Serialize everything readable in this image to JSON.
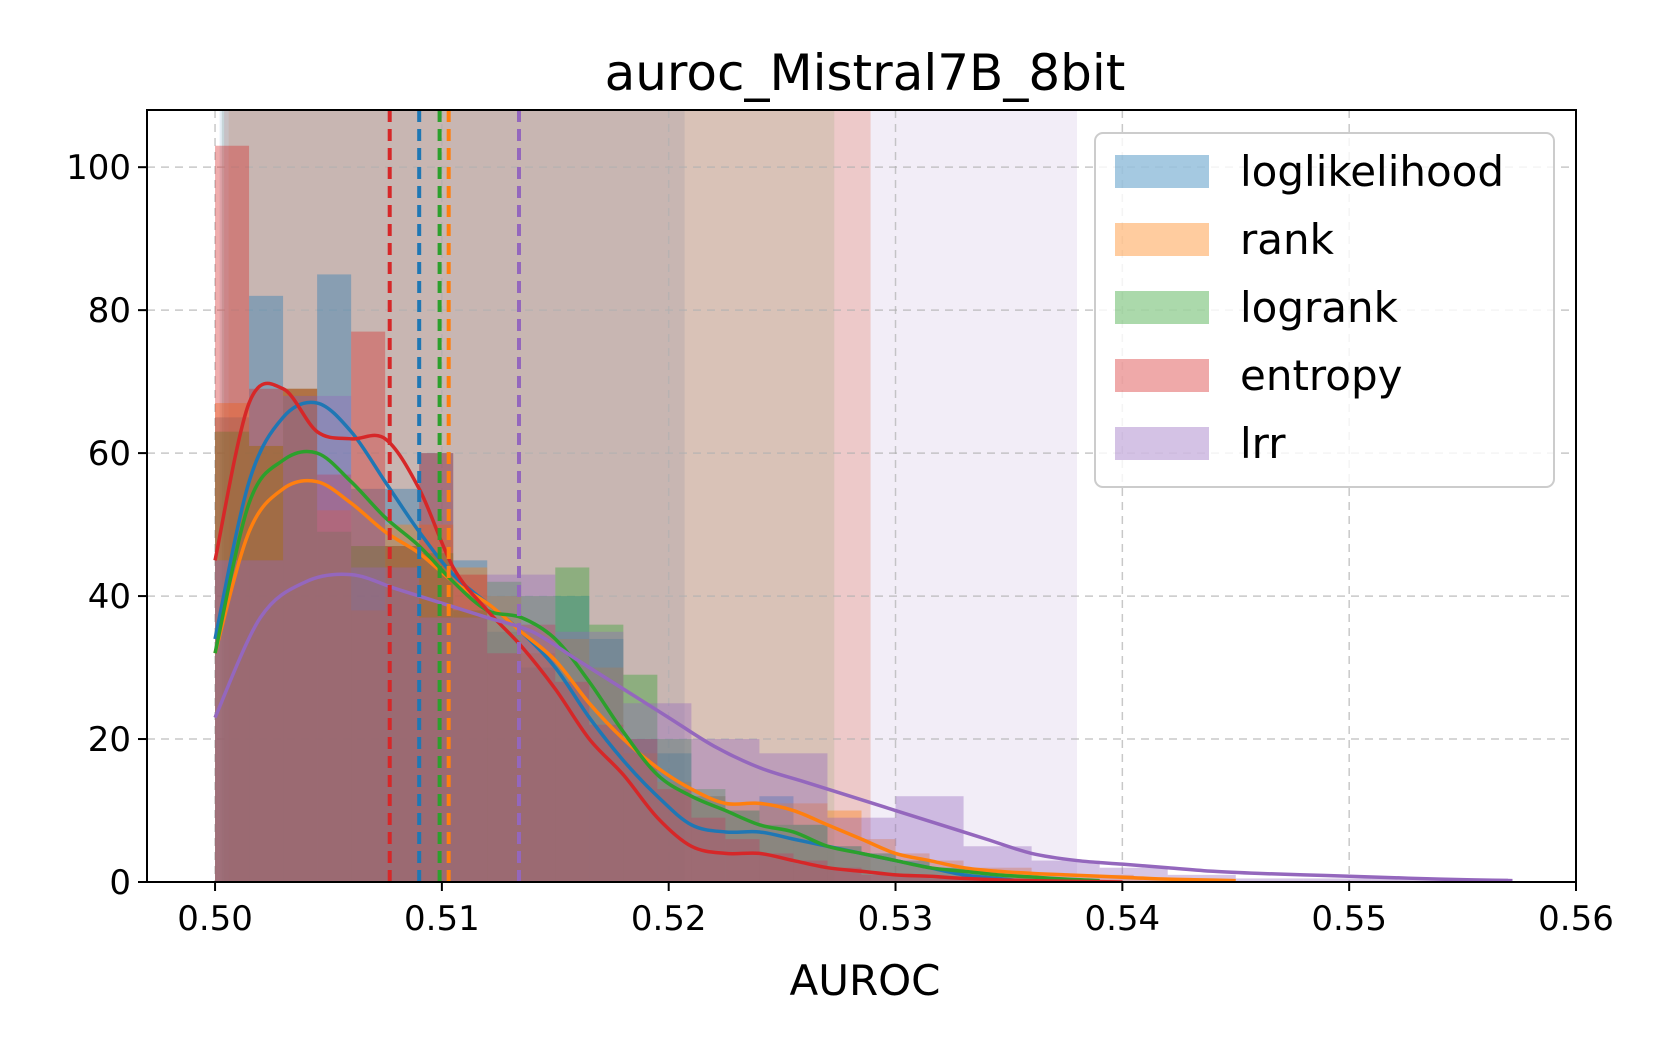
{
  "chart_data": {
    "type": "histogram",
    "title": "auroc_Mistral7B_8bit",
    "xlabel": "AUROC",
    "ylabel": "",
    "xlim": [
      0.497,
      0.56
    ],
    "ylim": [
      0,
      108
    ],
    "xticks": [
      "0.50",
      "0.51",
      "0.52",
      "0.53",
      "0.54",
      "0.55",
      "0.56"
    ],
    "xtick_values": [
      0.5,
      0.51,
      0.52,
      0.53,
      0.54,
      0.55,
      0.56
    ],
    "yticks": [
      "0",
      "20",
      "40",
      "60",
      "80",
      "100"
    ],
    "ytick_values": [
      0,
      20,
      40,
      60,
      80,
      100
    ],
    "grid": true,
    "legend_position": "top-right",
    "series": [
      {
        "name": "loglikelihood",
        "color": "#1f77b4",
        "mean": 0.509,
        "band": [
          0.5002,
          0.5207
        ],
        "hist_bins": [
          0.5,
          0.5015,
          0.503,
          0.5045,
          0.506,
          0.5075,
          0.509,
          0.5105,
          0.512,
          0.5135,
          0.515,
          0.5165,
          0.518,
          0.5195,
          0.521,
          0.5225,
          0.524,
          0.5255,
          0.527,
          0.5285,
          0.53,
          0.5315,
          0.533,
          0.5345,
          0.536
        ],
        "hist_counts": [
          65,
          82,
          68,
          85,
          55,
          55,
          60,
          45,
          35,
          30,
          40,
          34,
          20,
          18,
          12,
          10,
          12,
          8,
          5,
          4,
          3,
          2,
          1,
          0
        ],
        "kde_x": [
          0.5,
          0.5015,
          0.503,
          0.5045,
          0.506,
          0.5075,
          0.509,
          0.5105,
          0.512,
          0.5135,
          0.515,
          0.5165,
          0.518,
          0.5195,
          0.521,
          0.5225,
          0.524,
          0.5255,
          0.527,
          0.5285,
          0.53,
          0.5315,
          0.533,
          0.5345,
          0.536
        ],
        "kde_y": [
          34,
          56,
          65,
          67,
          63,
          56,
          49,
          43,
          39,
          35,
          30,
          23,
          17,
          12,
          8,
          7,
          7,
          6,
          5,
          4,
          3,
          2,
          1,
          0.5,
          0
        ]
      },
      {
        "name": "rank",
        "color": "#ff7f0e",
        "mean": 0.5103,
        "band": [
          0.5006,
          0.5289
        ],
        "hist_bins": [
          0.5,
          0.5015,
          0.503,
          0.5045,
          0.506,
          0.5075,
          0.509,
          0.5105,
          0.512,
          0.5135,
          0.515,
          0.5165,
          0.518,
          0.5195,
          0.521,
          0.5225,
          0.524,
          0.5255,
          0.527,
          0.5285,
          0.53,
          0.5315,
          0.533,
          0.5345,
          0.536,
          0.5375,
          0.539,
          0.5405,
          0.542,
          0.5435,
          0.545
        ],
        "hist_counts": [
          67,
          61,
          69,
          52,
          38,
          50,
          50,
          44,
          40,
          32,
          34,
          30,
          18,
          14,
          12,
          11,
          11,
          11,
          10,
          6,
          4,
          3,
          2,
          2,
          1,
          1,
          1,
          0.5,
          0.5,
          0
        ],
        "kde_x": [
          0.5,
          0.5015,
          0.503,
          0.5045,
          0.506,
          0.5075,
          0.509,
          0.5105,
          0.512,
          0.5135,
          0.515,
          0.5165,
          0.518,
          0.5195,
          0.521,
          0.5225,
          0.524,
          0.5255,
          0.527,
          0.5285,
          0.53,
          0.5315,
          0.533,
          0.5345,
          0.536,
          0.5375,
          0.539,
          0.5405,
          0.542,
          0.5435,
          0.545
        ],
        "kde_y": [
          32,
          49,
          55,
          56,
          53,
          49,
          46,
          42,
          39,
          35,
          31,
          25,
          20,
          16,
          13,
          11,
          11,
          10,
          8,
          6,
          4,
          3,
          2,
          1.5,
          1.2,
          1,
          0.8,
          0.6,
          0.4,
          0.3,
          0.2
        ]
      },
      {
        "name": "logrank",
        "color": "#2ca02c",
        "mean": 0.5099,
        "band": [
          0.5003,
          0.5273
        ],
        "hist_bins": [
          0.5,
          0.5015,
          0.503,
          0.5045,
          0.506,
          0.5075,
          0.509,
          0.5105,
          0.512,
          0.5135,
          0.515,
          0.5165,
          0.518,
          0.5195,
          0.521,
          0.5225,
          0.524,
          0.5255,
          0.527,
          0.5285,
          0.53,
          0.5315,
          0.533,
          0.5345,
          0.536,
          0.5375,
          0.539
        ],
        "hist_counts": [
          63,
          61,
          69,
          49,
          47,
          47,
          46,
          38,
          42,
          40,
          44,
          36,
          29,
          20,
          13,
          10,
          8,
          8,
          5,
          4,
          3,
          2,
          1.5,
          1,
          0.5,
          0
        ],
        "kde_x": [
          0.5,
          0.5015,
          0.503,
          0.5045,
          0.506,
          0.5075,
          0.509,
          0.5105,
          0.512,
          0.5135,
          0.515,
          0.5165,
          0.518,
          0.5195,
          0.521,
          0.5225,
          0.524,
          0.5255,
          0.527,
          0.5285,
          0.53,
          0.5315,
          0.533,
          0.5345,
          0.536,
          0.5375,
          0.539
        ],
        "kde_y": [
          32,
          53,
          59,
          60,
          56,
          51,
          47,
          42,
          38,
          37,
          34,
          28,
          21,
          15,
          12,
          10,
          8,
          7,
          5,
          4,
          3,
          2,
          1.5,
          1,
          0.7,
          0.4,
          0.2
        ]
      },
      {
        "name": "entropy",
        "color": "#d62728",
        "mean": 0.5077,
        "band": [
          0.5004,
          0.5289
        ],
        "hist_bins": [
          0.5,
          0.5015,
          0.503,
          0.5045,
          0.506,
          0.5075,
          0.509,
          0.5105,
          0.512,
          0.5135,
          0.515,
          0.5165,
          0.518,
          0.5195,
          0.521,
          0.5225,
          0.524,
          0.5255,
          0.527,
          0.5285,
          0.53,
          0.5315,
          0.533,
          0.5345,
          0.536
        ],
        "hist_counts": [
          103,
          69,
          69,
          57,
          77,
          47,
          60,
          43,
          32,
          36,
          28,
          22,
          20,
          13,
          9,
          6,
          4,
          3,
          2,
          1,
          1,
          0.5,
          0.5,
          0
        ],
        "kde_x": [
          0.5,
          0.5015,
          0.503,
          0.5045,
          0.506,
          0.5075,
          0.509,
          0.5105,
          0.512,
          0.5135,
          0.515,
          0.5165,
          0.518,
          0.5195,
          0.521,
          0.5225,
          0.524,
          0.5255,
          0.527,
          0.5285,
          0.53,
          0.5315,
          0.533,
          0.5345,
          0.536,
          0.5375,
          0.539,
          0.54
        ],
        "kde_y": [
          45,
          67,
          69,
          63,
          62,
          62,
          55,
          44,
          38,
          33,
          27,
          20,
          15,
          9,
          5,
          4,
          4,
          3,
          2,
          1.5,
          1,
          0.8,
          0.5,
          0.3,
          0.2,
          0.1,
          0.05,
          0
        ]
      },
      {
        "name": "lrr",
        "color": "#9467bd",
        "mean": 0.5134,
        "band": [
          0.5003,
          0.538
        ],
        "hist_bins": [
          0.5,
          0.503,
          0.506,
          0.509,
          0.512,
          0.515,
          0.518,
          0.521,
          0.524,
          0.527,
          0.53,
          0.533,
          0.536,
          0.539,
          0.542,
          0.545,
          0.548,
          0.551,
          0.554,
          0.557
        ],
        "hist_counts": [
          45,
          68,
          44,
          37,
          43,
          35,
          25,
          20,
          18,
          9,
          12,
          5,
          3,
          2,
          1,
          0.5,
          0.5,
          0.5,
          0.5
        ],
        "kde_x": [
          0.5,
          0.502,
          0.504,
          0.506,
          0.508,
          0.51,
          0.512,
          0.514,
          0.516,
          0.518,
          0.52,
          0.522,
          0.524,
          0.526,
          0.528,
          0.53,
          0.532,
          0.534,
          0.536,
          0.538,
          0.54,
          0.542,
          0.544,
          0.546,
          0.548,
          0.55,
          0.552,
          0.554,
          0.5572
        ],
        "kde_y": [
          23,
          37,
          42,
          43,
          41,
          39,
          37,
          35,
          31,
          27,
          23,
          19,
          16,
          14,
          12,
          10,
          8,
          6,
          4,
          3,
          2.5,
          2,
          1.5,
          1.2,
          1,
          0.8,
          0.6,
          0.4,
          0.2
        ]
      }
    ]
  }
}
